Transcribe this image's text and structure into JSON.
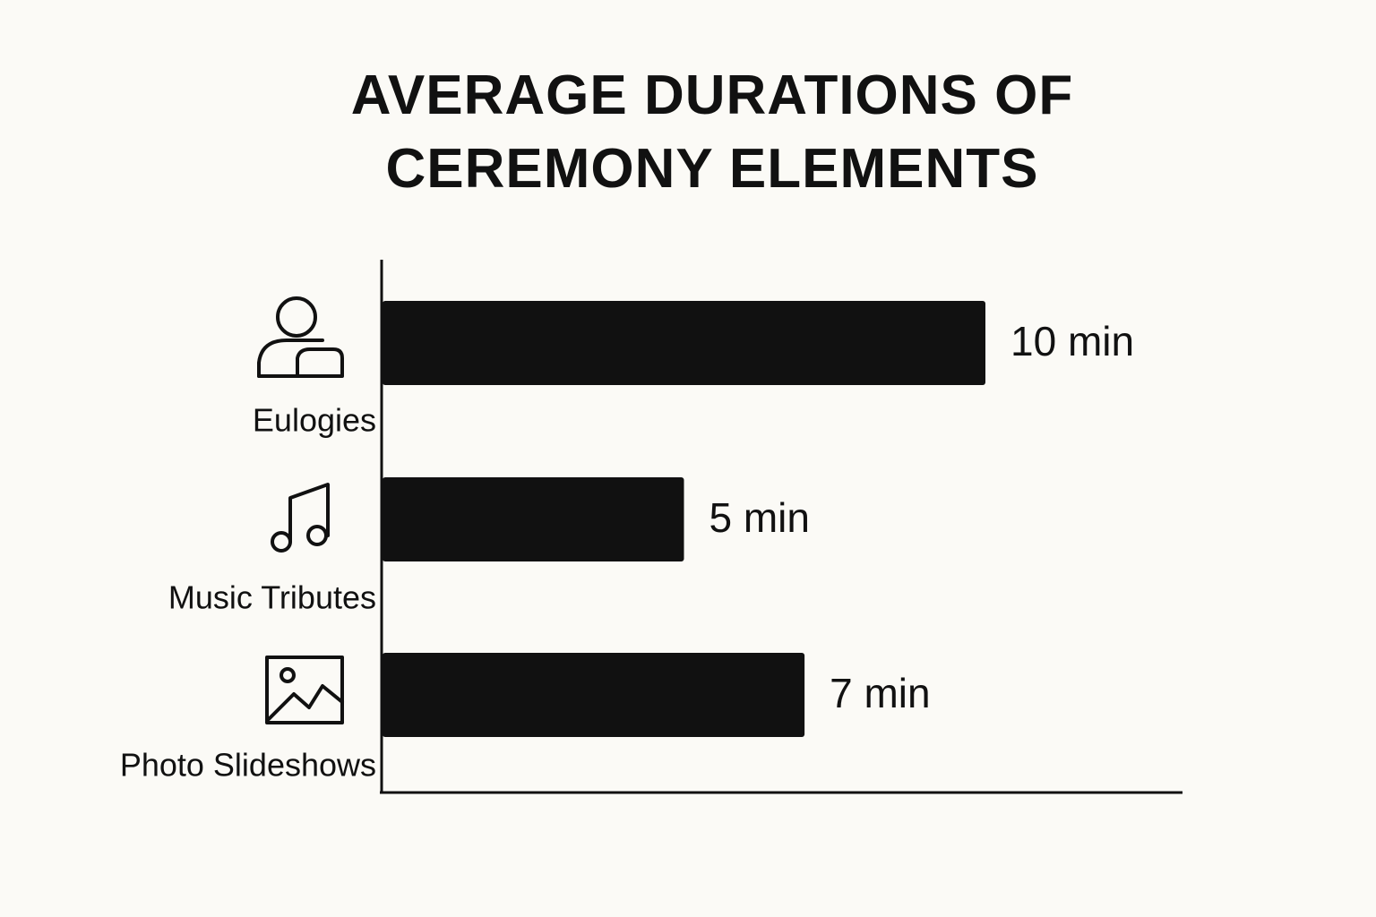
{
  "chart_data": {
    "type": "bar",
    "orientation": "horizontal",
    "title": "AVERAGE DURATIONS OF CEREMONY ELEMENTS",
    "categories": [
      "Eulogies",
      "Music Tributes",
      "Photo Slideshows"
    ],
    "values": [
      10,
      5,
      7
    ],
    "value_labels": [
      "10 min",
      "5 min",
      "7 min"
    ],
    "color": "#111111"
  }
}
